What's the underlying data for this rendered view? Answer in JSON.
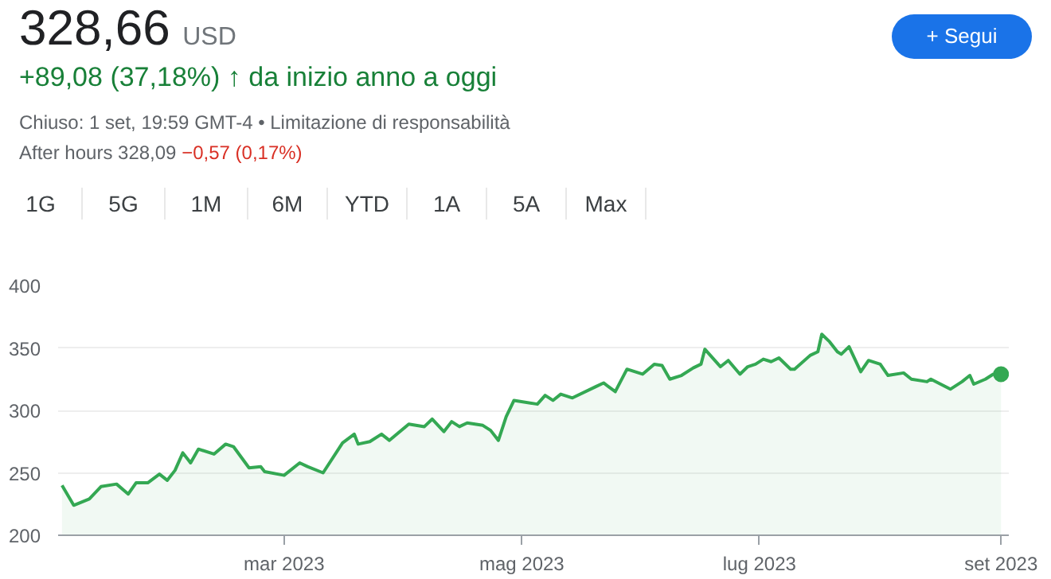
{
  "chart_data": {
    "type": "area",
    "title": "328,66",
    "subtitle": "+89,08 (37,18%) ↑ da inizio anno a oggi",
    "annotations": [
      "USD",
      "+ Segui",
      "Chiuso: 1 set, 19:59 GMT-4 • Limitazione di responsabilità",
      "After hours 328,09",
      "−0,57 (0,17%)",
      "1G",
      "5G",
      "1M",
      "6M",
      "YTD",
      "1A",
      "5A",
      "Max"
    ],
    "xlim": [
      "2023-01-02",
      "2023-09-03"
    ],
    "xticks": [
      {
        "value": "2023-03-01",
        "label": "mar 2023"
      },
      {
        "value": "2023-05-01",
        "label": "mag 2023"
      },
      {
        "value": "2023-07-01",
        "label": "lug 2023"
      },
      {
        "value": "2023-09-01",
        "label": "set 2023"
      }
    ],
    "ylim": [
      200,
      400
    ],
    "yticks": [
      200,
      250,
      300,
      350,
      400
    ],
    "grid": "y",
    "series": [
      {
        "color": "#34a853",
        "x": [
          "2023-01-03",
          "2023-01-06",
          "2023-01-10",
          "2023-01-13",
          "2023-01-17",
          "2023-01-20",
          "2023-01-22",
          "2023-01-25",
          "2023-01-28",
          "2023-01-30",
          "2023-02-01",
          "2023-02-03",
          "2023-02-05",
          "2023-02-07",
          "2023-02-11",
          "2023-02-14",
          "2023-02-16",
          "2023-02-20",
          "2023-02-23",
          "2023-02-24",
          "2023-03-01",
          "2023-03-05",
          "2023-03-07",
          "2023-03-11",
          "2023-03-16",
          "2023-03-19",
          "2023-03-20",
          "2023-03-23",
          "2023-03-26",
          "2023-03-28",
          "2023-04-02",
          "2023-04-06",
          "2023-04-08",
          "2023-04-11",
          "2023-04-13",
          "2023-04-15",
          "2023-04-17",
          "2023-04-21",
          "2023-04-23",
          "2023-04-25",
          "2023-04-27",
          "2023-04-29",
          "2023-05-05",
          "2023-05-07",
          "2023-05-09",
          "2023-05-11",
          "2023-05-14",
          "2023-05-20",
          "2023-05-22",
          "2023-05-25",
          "2023-05-28",
          "2023-06-01",
          "2023-06-04",
          "2023-06-06",
          "2023-06-08",
          "2023-06-11",
          "2023-06-14",
          "2023-06-16",
          "2023-06-17",
          "2023-06-19",
          "2023-06-21",
          "2023-06-23",
          "2023-06-26",
          "2023-06-28",
          "2023-06-30",
          "2023-07-02",
          "2023-07-04",
          "2023-07-06",
          "2023-07-09",
          "2023-07-10",
          "2023-07-14",
          "2023-07-16",
          "2023-07-17",
          "2023-07-19",
          "2023-07-21",
          "2023-07-22",
          "2023-07-24",
          "2023-07-27",
          "2023-07-29",
          "2023-08-01",
          "2023-08-03",
          "2023-08-07",
          "2023-08-09",
          "2023-08-13",
          "2023-08-14",
          "2023-08-19",
          "2023-08-22",
          "2023-08-24",
          "2023-08-25",
          "2023-08-28",
          "2023-08-30",
          "2023-09-01"
        ],
        "values": [
          240,
          224,
          229,
          239,
          241,
          233,
          242,
          242,
          249,
          244,
          252,
          266,
          258,
          269,
          265,
          273,
          271,
          254,
          255,
          251,
          248,
          258,
          255,
          250,
          274,
          281,
          273,
          275,
          281,
          276,
          289,
          287,
          293,
          283,
          291,
          287,
          290,
          288,
          284,
          276,
          295,
          308,
          305,
          312,
          308,
          313,
          310,
          319,
          322,
          315,
          333,
          329,
          337,
          336,
          325,
          328,
          334,
          337,
          349,
          342,
          335,
          340,
          329,
          335,
          337,
          341,
          339,
          342,
          333,
          333,
          344,
          347,
          361,
          355,
          347,
          345,
          351,
          331,
          340,
          337,
          328,
          330,
          325,
          323,
          325,
          317,
          323,
          328,
          321,
          325,
          329,
          329
        ]
      },
      {
        "type": "scatter",
        "marker": "circle",
        "color": "#34a853",
        "x": [
          "2023-09-01"
        ],
        "values": [
          329
        ]
      }
    ]
  }
}
